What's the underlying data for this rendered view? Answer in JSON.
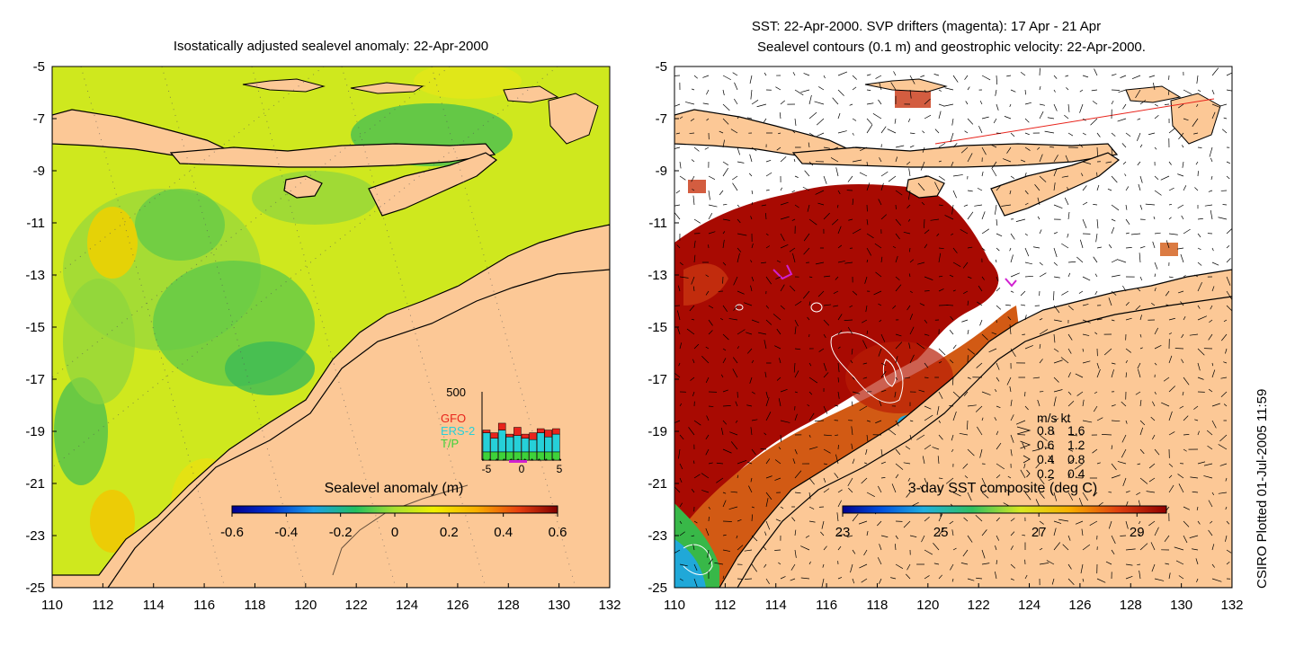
{
  "left_panel": {
    "title": "Isostatically adjusted sealevel anomaly: 22-Apr-2000",
    "colorbar": {
      "label": "Sealevel anomaly (m)",
      "ticks": [
        "-0.6",
        "-0.4",
        "-0.2",
        "0",
        "0.2",
        "0.4",
        "0.6"
      ],
      "range": [
        -0.6,
        0.6
      ]
    },
    "histogram": {
      "ymax_label": "500",
      "legend": [
        {
          "name": "GFO",
          "color": "#e8241c"
        },
        {
          "name": "ERS-2",
          "color": "#26d0d8"
        },
        {
          "name": "T/P",
          "color": "#3ed23a"
        }
      ],
      "xticks": [
        "-5",
        "0",
        "5"
      ],
      "bins": [
        {
          "tp": 0.12,
          "ers": 0.28,
          "gfo": 0.04
        },
        {
          "tp": 0.12,
          "ers": 0.2,
          "gfo": 0.08
        },
        {
          "tp": 0.12,
          "ers": 0.32,
          "gfo": 0.1
        },
        {
          "tp": 0.12,
          "ers": 0.22,
          "gfo": 0.04
        },
        {
          "tp": 0.12,
          "ers": 0.24,
          "gfo": 0.12
        },
        {
          "tp": 0.12,
          "ers": 0.2,
          "gfo": 0.06
        },
        {
          "tp": 0.12,
          "ers": 0.18,
          "gfo": 0.1
        },
        {
          "tp": 0.12,
          "ers": 0.28,
          "gfo": 0.06
        },
        {
          "tp": 0.12,
          "ers": 0.22,
          "gfo": 0.1
        },
        {
          "tp": 0.12,
          "ers": 0.26,
          "gfo": 0.08
        }
      ]
    }
  },
  "right_panel": {
    "title_line1": "SST: 22-Apr-2000. SVP drifters (magenta): 17 Apr - 21 Apr",
    "title_line2": "Sealevel contours (0.1 m) and geostrophic velocity: 22-Apr-2000.",
    "colorbar": {
      "label": "3-day SST composite (deg C)",
      "ticks": [
        "23",
        "25",
        "27",
        "29"
      ],
      "range": [
        23,
        29.6
      ]
    },
    "velocity_key": {
      "header": "m/s  kt",
      "rows": [
        {
          "ms": "0.8",
          "kt": "1.6"
        },
        {
          "ms": "0.6",
          "kt": "1.2"
        },
        {
          "ms": "0.4",
          "kt": "0.8"
        },
        {
          "ms": "0.2",
          "kt": "0.4"
        }
      ]
    }
  },
  "axes": {
    "lon_ticks": [
      "110",
      "112",
      "114",
      "116",
      "118",
      "120",
      "122",
      "124",
      "126",
      "128",
      "130",
      "132"
    ],
    "lat_ticks": [
      "-5",
      "-7",
      "-9",
      "-11",
      "-13",
      "-15",
      "-17",
      "-19",
      "-21",
      "-23",
      "-25"
    ],
    "lon_range": [
      110,
      132
    ],
    "lat_range": [
      -25,
      -5
    ]
  },
  "credit": "CSIRO Plotted 01-Jul-2005 11:59",
  "colors": {
    "land": "#fcc896",
    "ocean_base": "#cfe81e",
    "warm_sst": "#a80a02"
  }
}
